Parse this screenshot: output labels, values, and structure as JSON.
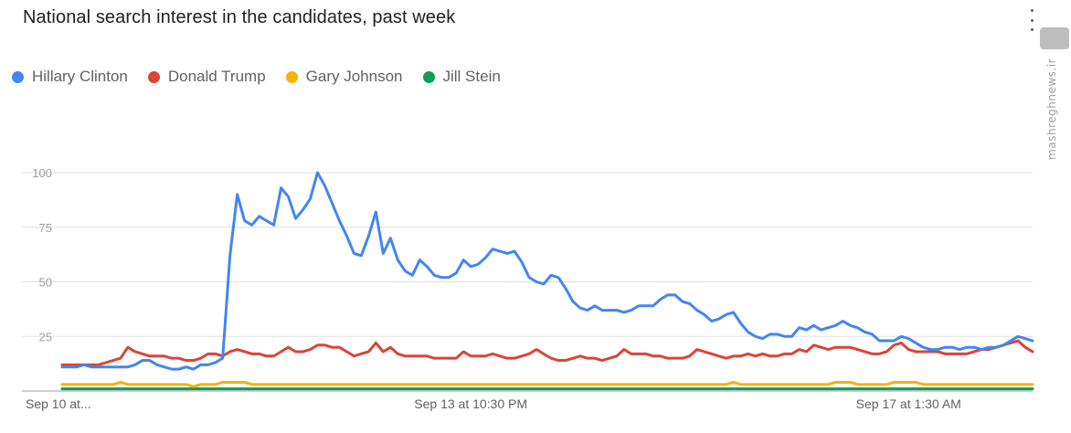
{
  "header": {
    "title": "National search interest in the candidates, past week"
  },
  "watermark": {
    "url": "mashreghnews.ir"
  },
  "colors": {
    "Hillary Clinton": "#4285f4",
    "Donald Trump": "#db4437",
    "Gary Johnson": "#f4b400",
    "Jill Stein": "#0f9d58"
  },
  "chart_data": {
    "type": "line",
    "title": "National search interest in the candidates, past week",
    "ylim": [
      0,
      100
    ],
    "yticks": [
      25,
      50,
      75,
      100
    ],
    "grid": true,
    "legend_position": "top-left",
    "x_tick_labels": [
      "Sep 10 at...",
      "Sep 13 at 10:30 PM",
      "Sep 17 at 1:30 AM"
    ],
    "x_tick_at": [
      0,
      56,
      116
    ],
    "n_points": 134,
    "series": [
      {
        "name": "Hillary Clinton",
        "color": "#4285f4",
        "values": [
          11,
          11,
          11,
          12,
          11,
          11,
          11,
          11,
          11,
          11,
          12,
          14,
          14,
          12,
          11,
          10,
          10,
          11,
          10,
          12,
          12,
          13,
          15,
          62,
          90,
          78,
          76,
          80,
          78,
          76,
          93,
          89,
          79,
          83,
          88,
          100,
          94,
          86,
          78,
          71,
          63,
          62,
          71,
          82,
          63,
          70,
          60,
          55,
          53,
          60,
          57,
          53,
          52,
          52,
          54,
          60,
          57,
          58,
          61,
          65,
          64,
          63,
          64,
          59,
          52,
          50,
          49,
          53,
          52,
          47,
          41,
          38,
          37,
          39,
          37,
          37,
          37,
          36,
          37,
          39,
          39,
          39,
          42,
          44,
          44,
          41,
          40,
          37,
          35,
          32,
          33,
          35,
          36,
          31,
          27,
          25,
          24,
          26,
          26,
          25,
          25,
          29,
          28,
          30,
          28,
          29,
          30,
          32,
          30,
          29,
          27,
          26,
          23,
          23,
          23,
          25,
          24,
          22,
          20,
          19,
          19,
          20,
          20,
          19,
          20,
          20,
          19,
          20,
          20,
          21,
          23,
          25,
          24,
          23
        ]
      },
      {
        "name": "Donald Trump",
        "color": "#db4437",
        "values": [
          12,
          12,
          12,
          12,
          12,
          12,
          13,
          14,
          15,
          20,
          18,
          17,
          16,
          16,
          16,
          15,
          15,
          14,
          14,
          15,
          17,
          17,
          16,
          18,
          19,
          18,
          17,
          17,
          16,
          16,
          18,
          20,
          18,
          18,
          19,
          21,
          21,
          20,
          20,
          18,
          16,
          17,
          18,
          22,
          18,
          20,
          17,
          16,
          16,
          16,
          16,
          15,
          15,
          15,
          15,
          18,
          16,
          16,
          16,
          17,
          16,
          15,
          15,
          16,
          17,
          19,
          17,
          15,
          14,
          14,
          15,
          16,
          15,
          15,
          14,
          15,
          16,
          19,
          17,
          17,
          17,
          16,
          16,
          15,
          15,
          15,
          16,
          19,
          18,
          17,
          16,
          15,
          16,
          16,
          17,
          16,
          17,
          16,
          16,
          17,
          17,
          19,
          18,
          21,
          20,
          19,
          20,
          20,
          20,
          19,
          18,
          17,
          17,
          18,
          21,
          22,
          19,
          18,
          18,
          18,
          18,
          17,
          17,
          17,
          17,
          18,
          19,
          19,
          20,
          21,
          22,
          23,
          20,
          18
        ]
      },
      {
        "name": "Gary Johnson",
        "color": "#f4b400",
        "values": [
          3,
          3,
          3,
          3,
          3,
          3,
          3,
          3,
          4,
          3,
          3,
          3,
          3,
          3,
          3,
          3,
          3,
          3,
          2,
          3,
          3,
          3,
          4,
          4,
          4,
          4,
          3,
          3,
          3,
          3,
          3,
          3,
          3,
          3,
          3,
          3,
          3,
          3,
          3,
          3,
          3,
          3,
          3,
          3,
          3,
          3,
          3,
          3,
          3,
          3,
          3,
          3,
          3,
          3,
          3,
          3,
          3,
          3,
          3,
          3,
          3,
          3,
          3,
          3,
          3,
          3,
          3,
          3,
          3,
          3,
          3,
          3,
          3,
          3,
          3,
          3,
          3,
          3,
          3,
          3,
          3,
          3,
          3,
          3,
          3,
          3,
          3,
          3,
          3,
          3,
          3,
          3,
          4,
          3,
          3,
          3,
          3,
          3,
          3,
          3,
          3,
          3,
          3,
          3,
          3,
          3,
          4,
          4,
          4,
          3,
          3,
          3,
          3,
          3,
          4,
          4,
          4,
          4,
          3,
          3,
          3,
          3,
          3,
          3,
          3,
          3,
          3,
          3,
          3,
          3,
          3,
          3,
          3,
          3
        ]
      },
      {
        "name": "Jill Stein",
        "color": "#0f9d58",
        "values": [
          1,
          1,
          1,
          1,
          1,
          1,
          1,
          1,
          1,
          1,
          1,
          1,
          1,
          1,
          1,
          1,
          1,
          1,
          1,
          1,
          1,
          1,
          1,
          1,
          1,
          1,
          1,
          1,
          1,
          1,
          1,
          1,
          1,
          1,
          1,
          1,
          1,
          1,
          1,
          1,
          1,
          1,
          1,
          1,
          1,
          1,
          1,
          1,
          1,
          1,
          1,
          1,
          1,
          1,
          1,
          1,
          1,
          1,
          1,
          1,
          1,
          1,
          1,
          1,
          1,
          1,
          1,
          1,
          1,
          1,
          1,
          1,
          1,
          1,
          1,
          1,
          1,
          1,
          1,
          1,
          1,
          1,
          1,
          1,
          1,
          1,
          1,
          1,
          1,
          1,
          1,
          1,
          1,
          1,
          1,
          1,
          1,
          1,
          1,
          1,
          1,
          1,
          1,
          1,
          1,
          1,
          1,
          1,
          1,
          1,
          1,
          1,
          1,
          1,
          1,
          1,
          1,
          1,
          1,
          1,
          1,
          1,
          1,
          1,
          1,
          1,
          1,
          1,
          1,
          1,
          1,
          1,
          1,
          1
        ]
      }
    ]
  }
}
